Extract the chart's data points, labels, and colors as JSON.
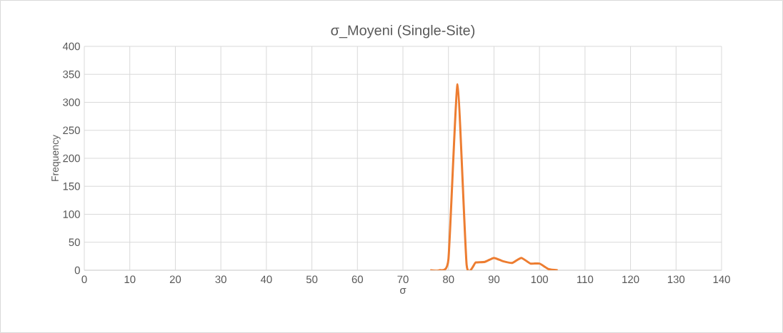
{
  "chart_data": {
    "type": "line",
    "title": "σ_Moyeni (Single-Site)",
    "xlabel": "σ",
    "ylabel": "Frequency",
    "x": [
      76,
      78,
      80,
      82,
      84,
      86,
      88,
      90,
      92,
      94,
      96,
      98,
      100,
      102,
      104
    ],
    "series": [
      {
        "color": "#ed7d31",
        "values": [
          0,
          0,
          20,
          332,
          9,
          14,
          15,
          22,
          16,
          13,
          22,
          12,
          12,
          2,
          0
        ]
      }
    ],
    "xlim": [
      0,
      140
    ],
    "ylim": [
      0,
      400
    ],
    "xticks": [
      0,
      10,
      20,
      30,
      40,
      50,
      60,
      70,
      80,
      90,
      100,
      110,
      120,
      130,
      140
    ],
    "yticks": [
      0,
      50,
      100,
      150,
      200,
      250,
      300,
      350,
      400
    ],
    "grid": true,
    "legend": false,
    "marker": "none",
    "line_style": "solid"
  }
}
